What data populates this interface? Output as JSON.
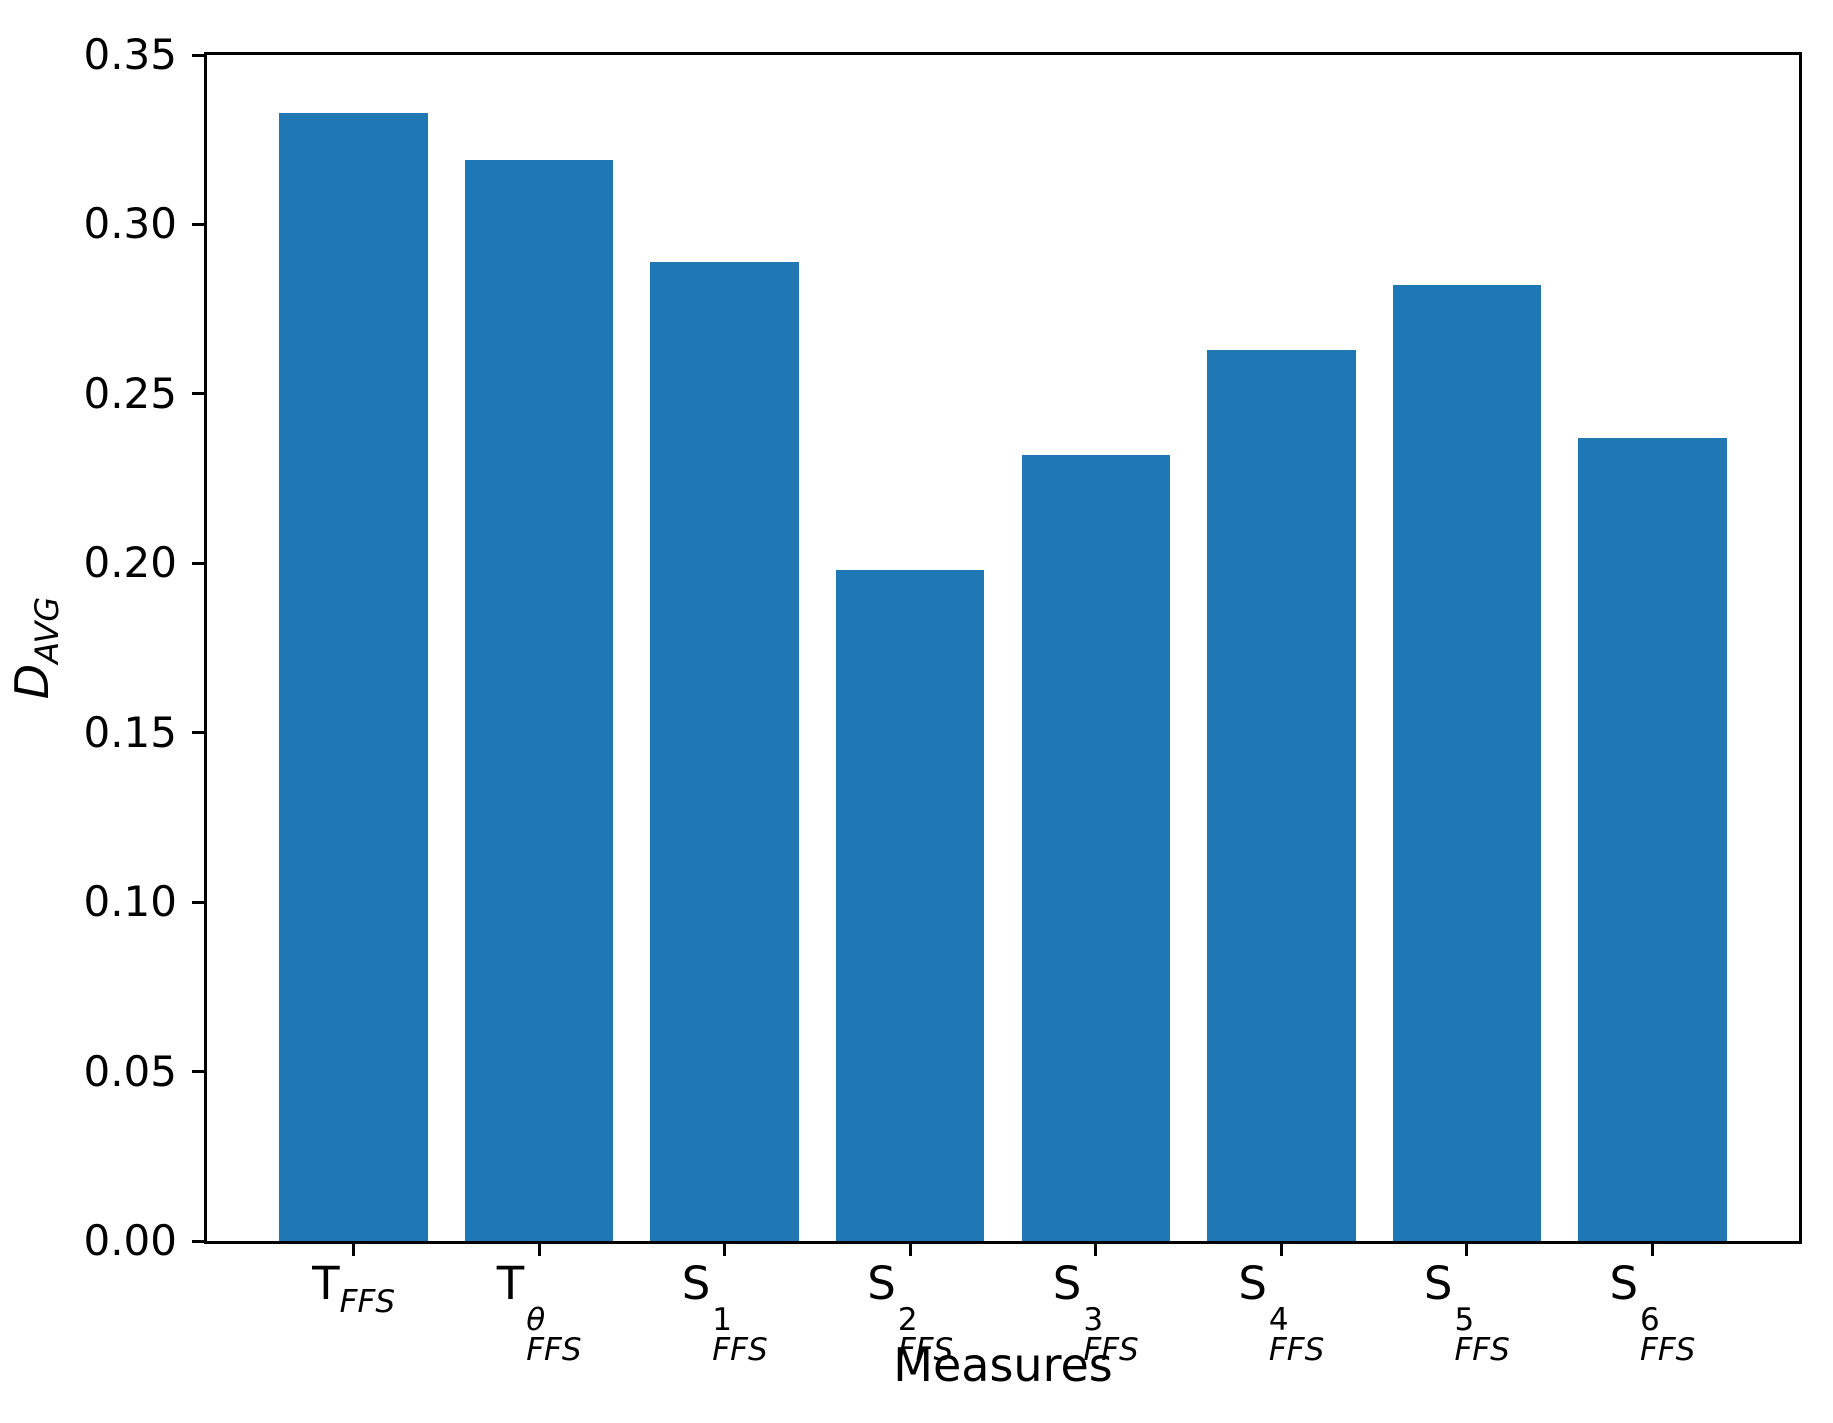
{
  "chart_data": {
    "type": "bar",
    "title": "",
    "xlabel": "Measures",
    "ylabel": {
      "base": "D",
      "sub": "AVG"
    },
    "categories": [
      {
        "base": "T",
        "sup": "",
        "sub": "FFS"
      },
      {
        "base": "T",
        "sup": "θ",
        "sub": "FFS"
      },
      {
        "base": "S",
        "sup": "1",
        "sub": "FFS"
      },
      {
        "base": "S",
        "sup": "2",
        "sub": "FFS"
      },
      {
        "base": "S",
        "sup": "3",
        "sub": "FFS"
      },
      {
        "base": "S",
        "sup": "4",
        "sub": "FFS"
      },
      {
        "base": "S",
        "sup": "5",
        "sub": "FFS"
      },
      {
        "base": "S",
        "sup": "6",
        "sub": "FFS"
      }
    ],
    "values": [
      0.333,
      0.319,
      0.289,
      0.198,
      0.232,
      0.263,
      0.282,
      0.237
    ],
    "ylim": [
      0,
      0.35
    ],
    "yticks": [
      "0.00",
      "0.05",
      "0.10",
      "0.15",
      "0.20",
      "0.25",
      "0.30",
      "0.35"
    ],
    "xlim": [
      -0.79,
      7.79
    ],
    "bar_width_fraction": 0.8,
    "bar_color": "#1f77b4",
    "grid": false,
    "legend": null
  }
}
